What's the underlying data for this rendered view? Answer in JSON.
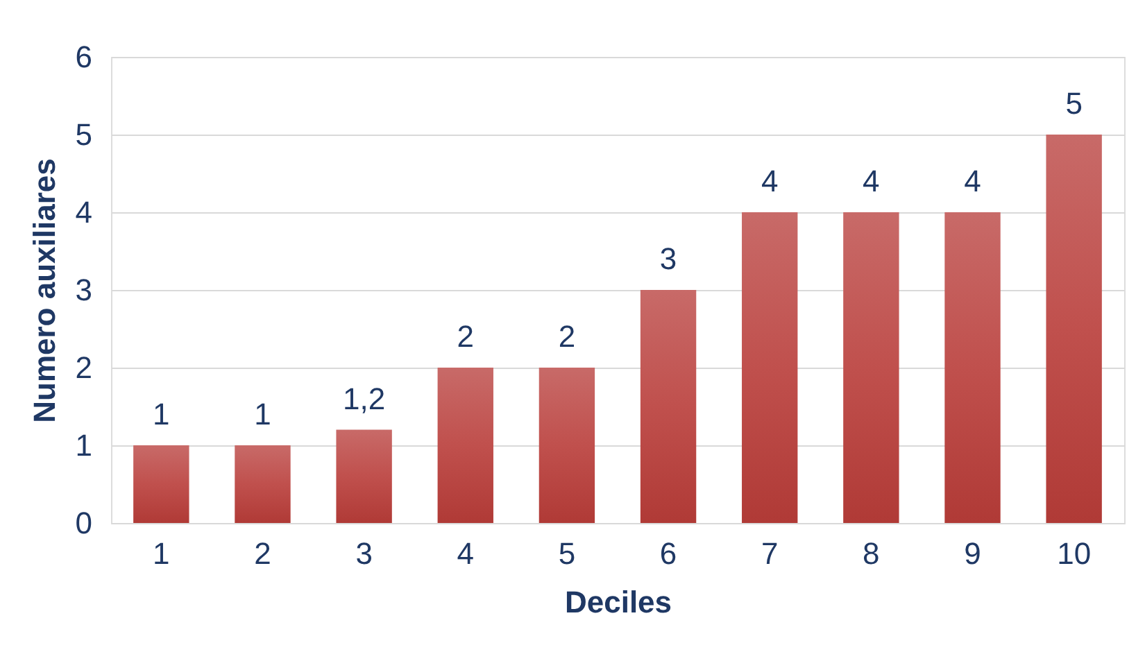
{
  "chart_data": {
    "type": "bar",
    "xlabel": "Deciles",
    "ylabel": "Numero auxiliares",
    "categories": [
      "1",
      "2",
      "3",
      "4",
      "5",
      "6",
      "7",
      "8",
      "9",
      "10"
    ],
    "values": [
      1,
      1,
      1.2,
      2,
      2,
      3,
      4,
      4,
      4,
      5
    ],
    "value_labels": [
      "1",
      "1",
      "1,2",
      "2",
      "2",
      "3",
      "4",
      "4",
      "4",
      "5"
    ],
    "color": "#c0504d",
    "ylim": [
      0,
      6
    ],
    "yticks": [
      0,
      1,
      2,
      3,
      4,
      5,
      6
    ],
    "grid": "y"
  }
}
